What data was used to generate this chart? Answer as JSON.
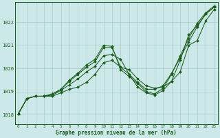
{
  "title": "Graphe pression niveau de la mer (hPa)",
  "bg_color": "#cce8e8",
  "line_color": "#1a5c1a",
  "grid_color": "#aacccc",
  "x_min": 0,
  "x_max": 23,
  "y_min": 1017.6,
  "y_max": 1022.85,
  "yticks": [
    1018,
    1019,
    1020,
    1021,
    1022
  ],
  "xticks": [
    0,
    1,
    2,
    3,
    4,
    5,
    6,
    7,
    8,
    9,
    10,
    11,
    12,
    13,
    14,
    15,
    16,
    17,
    18,
    19,
    20,
    21,
    22,
    23
  ],
  "series": [
    [
      1018.05,
      1018.7,
      1018.8,
      1018.8,
      1018.8,
      1018.95,
      1019.1,
      1019.2,
      1019.4,
      1019.75,
      1020.25,
      1020.35,
      1020.05,
      1019.95,
      1019.55,
      1019.25,
      1019.15,
      1019.2,
      1019.45,
      1019.85,
      1021.0,
      1021.2,
      1022.05,
      1022.55
    ],
    [
      1018.05,
      1018.7,
      1018.8,
      1018.8,
      1018.85,
      1019.05,
      1019.3,
      1019.55,
      1019.85,
      1020.1,
      1020.55,
      1020.6,
      1020.4,
      1019.75,
      1019.2,
      1018.95,
      1018.85,
      1019.05,
      1019.45,
      1020.35,
      1021.45,
      1021.85,
      1022.35,
      1022.65
    ],
    [
      1018.05,
      1018.7,
      1018.8,
      1018.8,
      1018.9,
      1019.1,
      1019.45,
      1019.75,
      1020.05,
      1020.3,
      1020.9,
      1020.9,
      1020.05,
      1019.75,
      1019.4,
      1019.1,
      1019.1,
      1019.25,
      1019.8,
      1020.45,
      1021.15,
      1021.8,
      1022.35,
      1022.65
    ],
    [
      1018.05,
      1018.7,
      1018.8,
      1018.8,
      1018.9,
      1019.1,
      1019.5,
      1019.8,
      1020.15,
      1020.4,
      1021.0,
      1020.95,
      1019.95,
      1019.65,
      1019.35,
      1019.0,
      1018.9,
      1019.15,
      1019.75,
      1020.55,
      1021.3,
      1021.95,
      1022.4,
      1022.7
    ]
  ]
}
